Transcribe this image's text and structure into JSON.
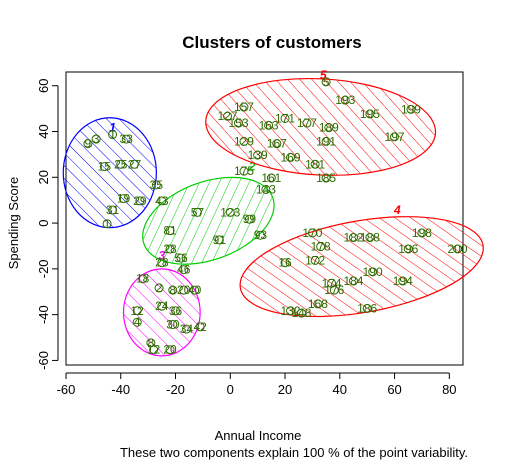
{
  "chart_data": {
    "type": "scatter",
    "title": "Clusters of customers",
    "xlabel": "Annual Income",
    "ylabel": "Spending Score",
    "subtitle": "These two components explain 100 % of the point variability.",
    "xlim": [
      -60,
      85
    ],
    "ylim": [
      -62,
      66
    ],
    "xticks": [
      "-60",
      "-40",
      "-20",
      "0",
      "20",
      "40",
      "60",
      "80"
    ],
    "yticks": [
      "-60",
      "-40",
      "-20",
      "0",
      "20",
      "40",
      "60"
    ],
    "grid": false,
    "colors": {
      "cluster_1": "#0000ff",
      "cluster_2": "#00cd00",
      "cluster_3": "#ff00ff",
      "cluster_4": "#ff0000",
      "cluster_5": "#ff0000",
      "cluster_5_label": "#ff0000",
      "points": "#2e6b00"
    },
    "clusters": [
      {
        "label": "1",
        "center": [
          -44,
          22
        ],
        "rx": 17,
        "ry": 24,
        "angle": 0,
        "color": "#0000ff",
        "hatch_angle": -45,
        "label_pos": [
          -43,
          40
        ]
      },
      {
        "label": "2",
        "center": [
          -8,
          1
        ],
        "rx": 25,
        "ry": 17,
        "angle": 20,
        "color": "#00cd00",
        "hatch_angle": 45,
        "label_pos": [
          8,
          23
        ]
      },
      {
        "label": "3",
        "center": [
          -25,
          -39
        ],
        "rx": 14,
        "ry": 19,
        "angle": 0,
        "color": "#ff00ff",
        "hatch_angle": -45,
        "label_pos": [
          -25,
          -16
        ]
      },
      {
        "label": "4",
        "center": [
          48,
          -19
        ],
        "rx": 45,
        "ry": 20,
        "angle": 10,
        "color": "#ff0000",
        "hatch_angle": -45,
        "label_pos": [
          61,
          4
        ]
      },
      {
        "label": "5",
        "center": [
          33,
          42
        ],
        "rx": 42,
        "ry": 21,
        "angle": -3,
        "color": "#ff0000",
        "hatch_angle": -45,
        "label_pos": [
          34,
          63
        ]
      }
    ],
    "point_labels": [
      {
        "t": "1",
        "x": -43,
        "y": 40
      },
      {
        "t": "3",
        "x": -49,
        "y": 38
      },
      {
        "t": "9",
        "x": -52,
        "y": 36
      },
      {
        "t": "33",
        "x": -38,
        "y": 38
      },
      {
        "t": "15",
        "x": -46,
        "y": 26
      },
      {
        "t": "25",
        "x": -40,
        "y": 27
      },
      {
        "t": "27",
        "x": -35,
        "y": 27
      },
      {
        "t": "19",
        "x": -39,
        "y": 12
      },
      {
        "t": "29",
        "x": -33,
        "y": 11
      },
      {
        "t": "31",
        "x": -43,
        "y": 7
      },
      {
        "t": "35",
        "x": -27,
        "y": 18
      },
      {
        "t": "43",
        "x": -25,
        "y": 11
      },
      {
        "t": "1",
        "x": -45,
        "y": 1
      },
      {
        "t": "175",
        "x": 5,
        "y": 24
      },
      {
        "t": "161",
        "x": 15,
        "y": 21
      },
      {
        "t": "143",
        "x": 13,
        "y": 16
      },
      {
        "t": "57",
        "x": -12,
        "y": 6
      },
      {
        "t": "123",
        "x": 0,
        "y": 6
      },
      {
        "t": "99",
        "x": 7,
        "y": 3
      },
      {
        "t": "81",
        "x": -22,
        "y": -2
      },
      {
        "t": "91",
        "x": -4,
        "y": -6
      },
      {
        "t": "93",
        "x": 11,
        "y": -4
      },
      {
        "t": "56",
        "x": -18,
        "y": -14
      },
      {
        "t": "28",
        "x": -22,
        "y": -10
      },
      {
        "t": "46",
        "x": -17,
        "y": -19
      },
      {
        "t": "28",
        "x": -25,
        "y": -16
      },
      {
        "t": "18",
        "x": -32,
        "y": -23
      },
      {
        "t": "2",
        "x": -26,
        "y": -27
      },
      {
        "t": "8",
        "x": -21,
        "y": -28
      },
      {
        "t": "20",
        "x": -17,
        "y": -28
      },
      {
        "t": "40",
        "x": -13,
        "y": -28
      },
      {
        "t": "12",
        "x": -34,
        "y": -37
      },
      {
        "t": "24",
        "x": -25,
        "y": -35
      },
      {
        "t": "36",
        "x": -20,
        "y": -37
      },
      {
        "t": "30",
        "x": -21,
        "y": -43
      },
      {
        "t": "34",
        "x": -16,
        "y": -45
      },
      {
        "t": "42",
        "x": -11,
        "y": -44
      },
      {
        "t": "4",
        "x": -34,
        "y": -42
      },
      {
        "t": "8",
        "x": -29,
        "y": -51
      },
      {
        "t": "12",
        "x": -28,
        "y": -54
      },
      {
        "t": "20",
        "x": -22,
        "y": -54
      },
      {
        "t": "170",
        "x": 30,
        "y": -3
      },
      {
        "t": "178",
        "x": 33,
        "y": -9
      },
      {
        "t": "182",
        "x": 45,
        "y": -5
      },
      {
        "t": "198",
        "x": 70,
        "y": -3
      },
      {
        "t": "196",
        "x": 65,
        "y": -10
      },
      {
        "t": "200",
        "x": 83,
        "y": -10
      },
      {
        "t": "188",
        "x": 51,
        "y": -5
      },
      {
        "t": "16",
        "x": 20,
        "y": -16
      },
      {
        "t": "172",
        "x": 31,
        "y": -15
      },
      {
        "t": "174",
        "x": 37,
        "y": -25
      },
      {
        "t": "184",
        "x": 45,
        "y": -24
      },
      {
        "t": "190",
        "x": 52,
        "y": -20
      },
      {
        "t": "194",
        "x": 63,
        "y": -24
      },
      {
        "t": "176",
        "x": 38,
        "y": -28
      },
      {
        "t": "186",
        "x": 50,
        "y": -36
      },
      {
        "t": "168",
        "x": 32,
        "y": -34
      },
      {
        "t": "132",
        "x": 22,
        "y": -37
      },
      {
        "t": "148",
        "x": 26,
        "y": -38
      },
      {
        "t": "5",
        "x": 35,
        "y": 63
      },
      {
        "t": "193",
        "x": 42,
        "y": 55
      },
      {
        "t": "195",
        "x": 51,
        "y": 49
      },
      {
        "t": "199",
        "x": 66,
        "y": 51
      },
      {
        "t": "197",
        "x": 60,
        "y": 39
      },
      {
        "t": "157",
        "x": 5,
        "y": 52
      },
      {
        "t": "127",
        "x": -1,
        "y": 48
      },
      {
        "t": "171",
        "x": 20,
        "y": 47
      },
      {
        "t": "177",
        "x": 28,
        "y": 45
      },
      {
        "t": "189",
        "x": 36,
        "y": 43
      },
      {
        "t": "153",
        "x": 3,
        "y": 45
      },
      {
        "t": "163",
        "x": 14,
        "y": 44
      },
      {
        "t": "167",
        "x": 17,
        "y": 36
      },
      {
        "t": "191",
        "x": 35,
        "y": 37
      },
      {
        "t": "139",
        "x": 10,
        "y": 31
      },
      {
        "t": "169",
        "x": 22,
        "y": 30
      },
      {
        "t": "181",
        "x": 31,
        "y": 27
      },
      {
        "t": "185",
        "x": 35,
        "y": 21
      },
      {
        "t": "129",
        "x": 5,
        "y": 37
      }
    ]
  }
}
